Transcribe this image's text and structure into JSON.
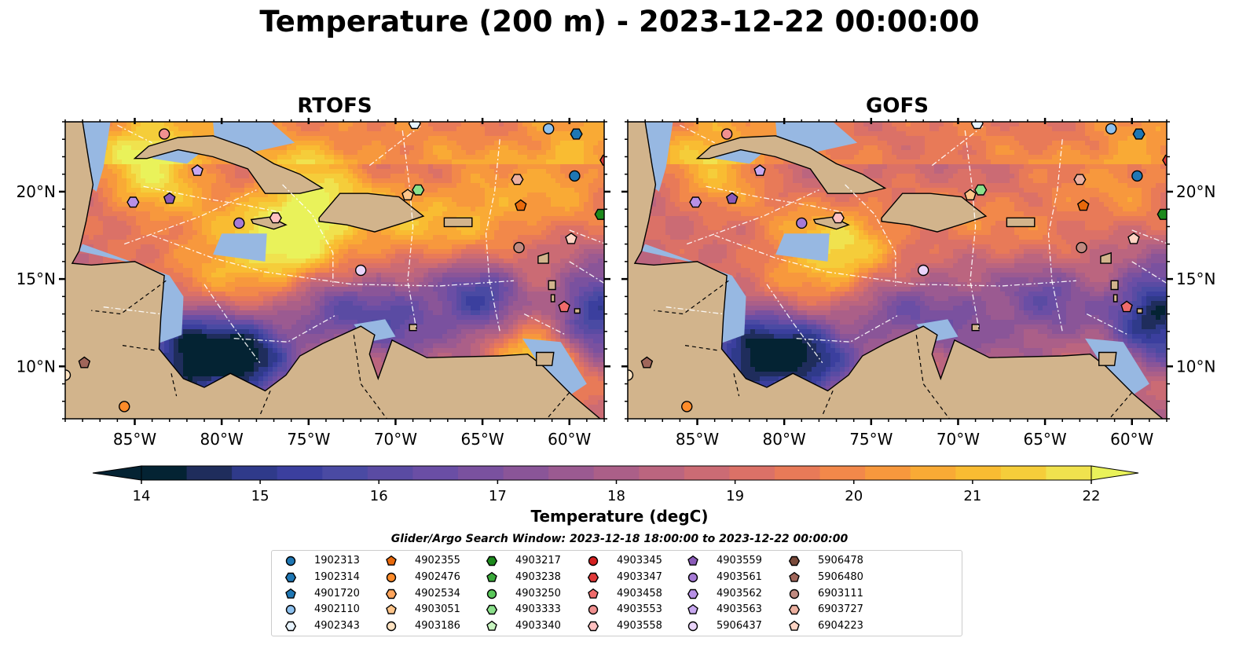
{
  "title": "Temperature (200 m) - 2023-12-22 00:00:00",
  "panels": [
    {
      "title": "RTOFS"
    },
    {
      "title": "GOFS"
    }
  ],
  "colorbar": {
    "label": "Temperature (degC)",
    "ticks": [
      "14",
      "15",
      "16",
      "17",
      "18",
      "19",
      "20",
      "21",
      "22"
    ],
    "min": 14,
    "max": 22,
    "colors": [
      "#042333",
      "#1f2d5c",
      "#2f3a8a",
      "#3b3f9e",
      "#4a4aa3",
      "#5a4ba3",
      "#6a4ea5",
      "#7a519f",
      "#8a5598",
      "#9b5a91",
      "#ab5f88",
      "#bb657f",
      "#cb6b74",
      "#db7167",
      "#e87a58",
      "#f2884a",
      "#f7983d",
      "#f9aa35",
      "#f9bc32",
      "#f5cd3a",
      "#f0e24e"
    ],
    "under_color": "#042333",
    "over_color": "#e9f25a"
  },
  "map_colors": {
    "land": "#d2b48c",
    "shallow": "#97b8e2",
    "coast": "#000000",
    "rivers": "#9ebbd6"
  },
  "chart_data": [
    {
      "type": "heatmap",
      "title": "RTOFS",
      "variable": "Temperature (200 m)",
      "units": "degC",
      "lon_range": [
        -89,
        -58
      ],
      "lat_range": [
        7,
        24
      ],
      "x_ticks": [
        "85°W",
        "80°W",
        "75°W",
        "70°W",
        "65°W",
        "60°W"
      ],
      "x_tick_values": [
        -85,
        -80,
        -75,
        -70,
        -65,
        -60
      ],
      "y_ticks": [
        "10°N",
        "15°N",
        "20°N"
      ],
      "y_tick_values": [
        10,
        15,
        20
      ],
      "warm_features": [
        [
          -84,
          21.5,
          21.8
        ],
        [
          -75,
          19.5,
          21.5
        ],
        [
          -76,
          16.5,
          21.2
        ],
        [
          -70,
          18,
          20.6
        ],
        [
          -65,
          18.5,
          20.8
        ],
        [
          -80,
          16,
          20.6
        ],
        [
          -62,
          10.6,
          21.5
        ],
        [
          -60,
          21,
          20.4
        ]
      ],
      "cold_features": [
        [
          -82,
          10.5,
          14.2
        ],
        [
          -78.5,
          10.6,
          14.6
        ],
        [
          -65,
          13.8,
          15.2
        ],
        [
          -70,
          13,
          16.2
        ],
        [
          -74,
          13.5,
          16.5
        ],
        [
          -58.5,
          13,
          14.8
        ]
      ],
      "base_temp": 18.8
    },
    {
      "type": "heatmap",
      "title": "GOFS",
      "variable": "Temperature (200 m)",
      "units": "degC",
      "lon_range": [
        -89,
        -58
      ],
      "lat_range": [
        7,
        24
      ],
      "x_ticks": [
        "85°W",
        "80°W",
        "75°W",
        "70°W",
        "65°W",
        "60°W"
      ],
      "x_tick_values": [
        -85,
        -80,
        -75,
        -70,
        -65,
        -60
      ],
      "y_ticks": [
        "10°N",
        "15°N",
        "20°N"
      ],
      "y_tick_values": [
        10,
        15,
        20
      ],
      "warm_features": [
        [
          -84,
          21.5,
          20.8
        ],
        [
          -76,
          16.5,
          21.0
        ],
        [
          -79,
          16,
          20.3
        ],
        [
          -70,
          18,
          19.6
        ],
        [
          -65,
          18.5,
          19.8
        ],
        [
          -60,
          21,
          20.1
        ]
      ],
      "cold_features": [
        [
          -82,
          10.5,
          14.5
        ],
        [
          -78.5,
          10.6,
          15.0
        ],
        [
          -65,
          13.8,
          16.5
        ],
        [
          -70,
          13,
          17.0
        ],
        [
          -74,
          13.5,
          16.8
        ],
        [
          -58.5,
          13,
          14.3
        ]
      ],
      "base_temp": 18.6
    }
  ],
  "legend": {
    "title": "Glider/Argo Search Window: 2023-12-18 18:00:00 to 2023-12-22 00:00:00",
    "items": [
      {
        "label": "1902313",
        "marker": "circle",
        "color": "#1f77b4",
        "lon": -59.7,
        "lat": 20.9
      },
      {
        "label": "1902314",
        "marker": "hexagon",
        "color": "#1f77b4",
        "lon": -59.6,
        "lat": 23.3
      },
      {
        "label": "4901720",
        "marker": "pentagon",
        "color": "#1f77b4",
        "lon": null,
        "lat": null
      },
      {
        "label": "4902110",
        "marker": "circle",
        "color": "#8ec1ee",
        "lon": -61.2,
        "lat": 23.6
      },
      {
        "label": "4902343",
        "marker": "hexagon",
        "color": "#e8f4ff",
        "lon": -68.9,
        "lat": 23.9
      },
      {
        "label": "4902355",
        "marker": "pentagon",
        "color": "#e8690b",
        "lon": -62.8,
        "lat": 19.2
      },
      {
        "label": "4902476",
        "marker": "circle",
        "color": "#ff8c2a",
        "lon": -85.6,
        "lat": 7.7
      },
      {
        "label": "4902534",
        "marker": "hexagon",
        "color": "#ffa55c",
        "lon": null,
        "lat": null
      },
      {
        "label": "4903051",
        "marker": "pentagon",
        "color": "#ffc58a",
        "lon": -69.3,
        "lat": 19.8
      },
      {
        "label": "4903186",
        "marker": "circle",
        "color": "#ffe3c2",
        "lon": -89.0,
        "lat": 9.5
      },
      {
        "label": "4903217",
        "marker": "hexagon",
        "color": "#1d8a1d",
        "lon": -58.2,
        "lat": 18.7
      },
      {
        "label": "4903238",
        "marker": "pentagon",
        "color": "#3aa83a",
        "lon": null,
        "lat": null
      },
      {
        "label": "4903250",
        "marker": "circle",
        "color": "#5ac85a",
        "lon": null,
        "lat": null
      },
      {
        "label": "4903333",
        "marker": "hexagon",
        "color": "#8be08b",
        "lon": -68.7,
        "lat": 20.1
      },
      {
        "label": "4903340",
        "marker": "pentagon",
        "color": "#c8f5c0",
        "lon": null,
        "lat": null
      },
      {
        "label": "4903345",
        "marker": "circle",
        "color": "#d42020",
        "lon": null,
        "lat": null
      },
      {
        "label": "4903347",
        "marker": "hexagon",
        "color": "#e03838",
        "lon": -57.9,
        "lat": 21.8
      },
      {
        "label": "4903458",
        "marker": "pentagon",
        "color": "#f06b6b",
        "lon": -60.3,
        "lat": 13.4
      },
      {
        "label": "4903553",
        "marker": "circle",
        "color": "#f09090",
        "lon": -83.3,
        "lat": 23.3
      },
      {
        "label": "4903558",
        "marker": "hexagon",
        "color": "#ffc0c0",
        "lon": -76.9,
        "lat": 18.5
      },
      {
        "label": "4903559",
        "marker": "pentagon",
        "color": "#8a5ab8",
        "lon": -83.0,
        "lat": 19.6
      },
      {
        "label": "4903561",
        "marker": "circle",
        "color": "#a67ad6",
        "lon": -79.0,
        "lat": 18.2
      },
      {
        "label": "4903562",
        "marker": "hexagon",
        "color": "#b890e6",
        "lon": -85.1,
        "lat": 19.4
      },
      {
        "label": "4903563",
        "marker": "pentagon",
        "color": "#c8a8f0",
        "lon": -81.4,
        "lat": 21.2
      },
      {
        "label": "5906437",
        "marker": "circle",
        "color": "#ead4fa",
        "lon": -72.0,
        "lat": 15.5
      },
      {
        "label": "5906478",
        "marker": "hexagon",
        "color": "#7a4a3a",
        "lon": null,
        "lat": null
      },
      {
        "label": "5906480",
        "marker": "pentagon",
        "color": "#a0665a",
        "lon": -87.9,
        "lat": 10.2
      },
      {
        "label": "6903111",
        "marker": "circle",
        "color": "#c08a80",
        "lon": -62.9,
        "lat": 16.8
      },
      {
        "label": "6903727",
        "marker": "hexagon",
        "color": "#ecb0a0",
        "lon": -63.0,
        "lat": 20.7
      },
      {
        "label": "6904223",
        "marker": "pentagon",
        "color": "#ffd4c4",
        "lon": -59.9,
        "lat": 17.3
      }
    ]
  }
}
